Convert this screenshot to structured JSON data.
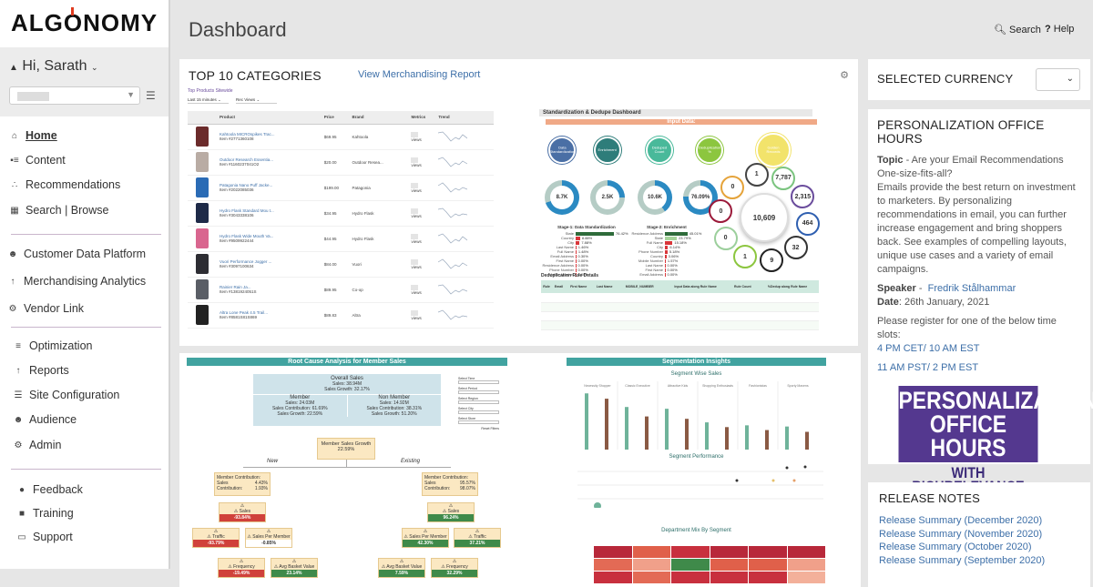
{
  "brand": {
    "logo": "ALGONOMY"
  },
  "user": {
    "greeting": "Hi, Sarath"
  },
  "sidebar": {
    "group1": [
      {
        "label": "Home",
        "icon": "home-icon",
        "active": true
      },
      {
        "label": "Content",
        "icon": "content-icon"
      },
      {
        "label": "Recommendations",
        "icon": "sitemap-icon"
      },
      {
        "label": "Search | Browse",
        "icon": "search-browse-icon"
      }
    ],
    "group2": [
      {
        "label": "Customer Data Platform",
        "icon": "users-icon"
      },
      {
        "label": "Merchandising Analytics",
        "icon": "chart-icon"
      },
      {
        "label": "Vendor Link",
        "icon": "gears-icon"
      }
    ],
    "group3": [
      {
        "label": "Optimization",
        "icon": "sliders-icon"
      },
      {
        "label": "Reports",
        "icon": "chart-icon"
      },
      {
        "label": "Site Configuration",
        "icon": "config-icon"
      },
      {
        "label": "Audience",
        "icon": "users-icon"
      },
      {
        "label": "Admin",
        "icon": "gears-icon"
      }
    ],
    "group4": [
      {
        "label": "Feedback",
        "icon": "comments-icon"
      },
      {
        "label": "Training",
        "icon": "book-icon"
      },
      {
        "label": "Support",
        "icon": "chat-icon"
      }
    ]
  },
  "header": {
    "title": "Dashboard",
    "search": "Search",
    "help": "Help"
  },
  "top10": {
    "title": "TOP 10 CATEGORIES",
    "link": "View Merchandising Report",
    "subtitle": "Top Products Sitewide",
    "filter_time": "Last 15 minutes",
    "filter_metric": "Rec Views",
    "columns": [
      "Product",
      "Price",
      "Brand",
      "Metrics",
      "Trend"
    ],
    "rows": [
      {
        "name": "Kahtoola MICROspikes Trac...",
        "item": "Item #2771360108",
        "price": "$69.95",
        "brand": "Kahtoola",
        "metric": "views",
        "color": "#6b2b2b"
      },
      {
        "name": "Outdoor Research Essentia...",
        "item": "Item #1160237041O2",
        "price": "$20.00",
        "brand": "Outdoor Resea...",
        "metric": "views",
        "color": "#b9aca4"
      },
      {
        "name": "Patagonia Nano Puff Jacke...",
        "item": "Item #2022085036",
        "price": "$199.00",
        "brand": "Patagonia",
        "metric": "views",
        "color": "#2a6bb5"
      },
      {
        "name": "Hydro Flask Standard Mou t...",
        "item": "Item #3043338106",
        "price": "$34.95",
        "brand": "Hydro Flask",
        "metric": "views",
        "color": "#1e2a48"
      },
      {
        "name": "Hydro Flask Wide Mouth Va...",
        "item": "Item #9509922444",
        "price": "$44.95",
        "brand": "Hydro Flask",
        "metric": "views",
        "color": "#d9668f"
      },
      {
        "name": "Vuori Performance Jogger ...",
        "item": "Item #3097100634",
        "price": "$84.00",
        "brand": "Vuori",
        "metric": "views",
        "color": "#2d2d33"
      },
      {
        "name": "Rainier Rain Ja...",
        "item": "Item #1381924051S",
        "price": "$89.95",
        "brand": "Co-op",
        "metric": "views",
        "color": "#5a5e66"
      },
      {
        "name": "Altra Lone Peak 4.5 Trail...",
        "item": "Item #8581S81S869",
        "price": "$89.83",
        "brand": "Altra",
        "metric": "views",
        "color": "#222"
      }
    ]
  },
  "dedupe": {
    "title": "Standardization & Dedupe Dashboard",
    "input": "Input Data:",
    "stages": [
      {
        "label": "Data Standardization",
        "color": "#4a6fa5"
      },
      {
        "label": "Enrichment",
        "color": "#2e7d7a"
      },
      {
        "label": "Deduped Count",
        "color": "#49b99a"
      },
      {
        "label": "Deduplication %",
        "color": "#8cc63f"
      },
      {
        "label": "Golden Records",
        "color": "#f2e36b"
      }
    ],
    "donuts": [
      {
        "value": "8.7K",
        "pct": 70
      },
      {
        "value": "2.5K",
        "pct": 25
      },
      {
        "value": "10.6K",
        "pct": 40
      },
      {
        "value": "76.09%",
        "pct": 76
      }
    ],
    "hub_total": "10,609",
    "hub": [
      {
        "v": "1",
        "c": "#444"
      },
      {
        "v": "7,787",
        "c": "#7bc47f"
      },
      {
        "v": "2,315",
        "c": "#6a4c9c"
      },
      {
        "v": "464",
        "c": "#2f5fb0"
      },
      {
        "v": "32",
        "c": "#333"
      },
      {
        "v": "9",
        "c": "#222"
      },
      {
        "v": "1",
        "c": "#8cc63f"
      },
      {
        "v": "0",
        "c": "#9ccf9c"
      },
      {
        "v": "0",
        "c": "#9b1a3a"
      },
      {
        "v": "0",
        "c": "#e5a33a"
      }
    ],
    "stage1_title": "Stage-1: Data Standardization",
    "stage1": [
      {
        "l": "State",
        "v": 76.42
      },
      {
        "l": "Country",
        "v": 8.88
      },
      {
        "l": "City",
        "v": 7.88
      },
      {
        "l": "Last Name",
        "v": 1.46
      },
      {
        "l": "Full Name",
        "v": 1.48
      },
      {
        "l": "Email Address",
        "v": 0.3
      },
      {
        "l": "First Name",
        "v": 0
      },
      {
        "l": "Residence Address",
        "v": 0
      },
      {
        "l": "Phone Number",
        "v": 0
      },
      {
        "l": "Mobile Number",
        "v": 0
      }
    ],
    "stage2_title": "Stage-2: Enrichment",
    "stage2": [
      {
        "l": "Residence Address",
        "v": 45.01
      },
      {
        "l": "State",
        "v": 23.79
      },
      {
        "l": "Full Name",
        "v": 15.18
      },
      {
        "l": "City",
        "v": 6.14
      },
      {
        "l": "Phone Number",
        "v": 5.18
      },
      {
        "l": "Country",
        "v": 3.06
      },
      {
        "l": "Mobile Number",
        "v": 1.57
      },
      {
        "l": "Last Name",
        "v": 0
      },
      {
        "l": "First Name",
        "v": 0
      },
      {
        "l": "Email Address",
        "v": 0
      }
    ],
    "rules_title": "Deduplication Rule Details",
    "rules_columns": [
      "Rule",
      "Email",
      "First Name",
      "Last Name",
      "MOBILE_NUMBER",
      "Input Data along Rule Name",
      "Rule Count",
      "%Dedup along Rule Name"
    ]
  },
  "rca": {
    "title": "Root Cause Analysis for Member Sales",
    "overall": {
      "title": "Overall Sales",
      "sales": "Sales: 38.94M",
      "growth": "Sales Growth: 32.17%"
    },
    "member": {
      "title": "Member",
      "sales": "Sales: 24.03M",
      "contrib": "Sales Contribution: 61.69%",
      "growth": "Sales Growth: 22.59%"
    },
    "nonmember": {
      "title": "Non Member",
      "sales": "Sales: 14.92M",
      "contrib": "Sales Contribution: 38.31%",
      "growth": "Sales Growth: 51.20%"
    },
    "root": {
      "title": "Member Sales Growth",
      "value": "22.59%"
    },
    "new_label": "New",
    "existing_label": "Existing",
    "new_contrib": {
      "a": "Member Contribution:",
      "av": "4.43%",
      "b": "Sales Contribution:",
      "bv": "1.93%"
    },
    "ex_contrib": {
      "a": "Member Contribution:",
      "av": "95.57%",
      "b": "Sales Contribution:",
      "bv": "98.07%"
    },
    "nodes": {
      "new_sales": {
        "l": "Sales",
        "v": "-93.84%"
      },
      "new_traffic": {
        "l": "Traffic",
        "v": "-93.79%"
      },
      "new_spm": {
        "l": "Sales Per Member",
        "v": "-0.85%"
      },
      "new_freq": {
        "l": "Frequency",
        "v": "-19.49%"
      },
      "new_abv": {
        "l": "Avg Basket Value",
        "v": "23.14%"
      },
      "ex_sales": {
        "l": "Sales",
        "v": "96.24%"
      },
      "ex_spm": {
        "l": "Sales Per Member",
        "v": "42.30%"
      },
      "ex_traffic": {
        "l": "Traffic",
        "v": "37.21%"
      },
      "ex_abv": {
        "l": "Avg Basket Value",
        "v": "7.59%"
      },
      "ex_freq": {
        "l": "Frequency",
        "v": "32.29%"
      }
    },
    "filters": [
      "Select Time",
      "Select Period",
      "Select Region",
      "Select City",
      "Select Store"
    ],
    "reset": "Reset Filters"
  },
  "seg": {
    "title": "Segmentation Insights",
    "sales_title": "Segment Wise Sales",
    "perf_title": "Segment Performance",
    "mix_title": "Department Mix By Segment",
    "segments": [
      "Necessity Shopper",
      "Classic Executive",
      "Attractive Kids",
      "Shopping Enthusiasts",
      "Fashionistas",
      "Sporty Mavens"
    ],
    "bar_colors": [
      "#6fb39a",
      "#8a5a44"
    ],
    "bars": [
      [
        9.5,
        8.6
      ],
      [
        7.2,
        5.6
      ],
      [
        6.9,
        5.2
      ],
      [
        4.6,
        3.8
      ],
      [
        4.1,
        3.3
      ],
      [
        3.9,
        3.0
      ]
    ],
    "heat": [
      [
        "#b8283a",
        "#e0604a",
        "#c8303e",
        "#b8283a",
        "#b8283a",
        "#b8283a"
      ],
      [
        "#e36a55",
        "#f0a08a",
        "#3f8a4a",
        "#e0604a",
        "#e0604a",
        "#f0a08a"
      ],
      [
        "#c8303e",
        "#e36a55",
        "#c8303e",
        "#c8303e",
        "#c8303e",
        "#f3b09a"
      ]
    ]
  },
  "currency": {
    "title": "SELECTED CURRENCY"
  },
  "office": {
    "title": "PERSONALIZATION OFFICE HOURS",
    "topic_label": "Topic",
    "topic": " - Are your Email Recommendations One-size-fits-all?",
    "body": "Emails provide the best return on investment to marketers. By personalizing recommendations in email, you can further increase engagement and bring shoppers back. See examples of compelling layouts, unique use cases and a variety of email campaigns.",
    "speaker_label": "Speaker",
    "speaker": "Fredrik Stålhammar",
    "date_label": "Date",
    "date": ": 26th January, 2021",
    "register": "Please register for one of the below time slots:",
    "slot1": "4 PM CET/ 10 AM EST",
    "slot2": "11 AM PST/ 2 PM EST",
    "banner1": "PERSONALIZATION",
    "banner2": "OFFICE HOURS",
    "banner3": "WITH RICHRELEVANCE",
    "banner_color": "#54388f"
  },
  "release": {
    "title": "RELEASE NOTES",
    "items": [
      "Release Summary (December 2020)",
      "Release Summary (November 2020)",
      "Release Summary (October 2020)",
      "Release Summary (September 2020)"
    ]
  }
}
